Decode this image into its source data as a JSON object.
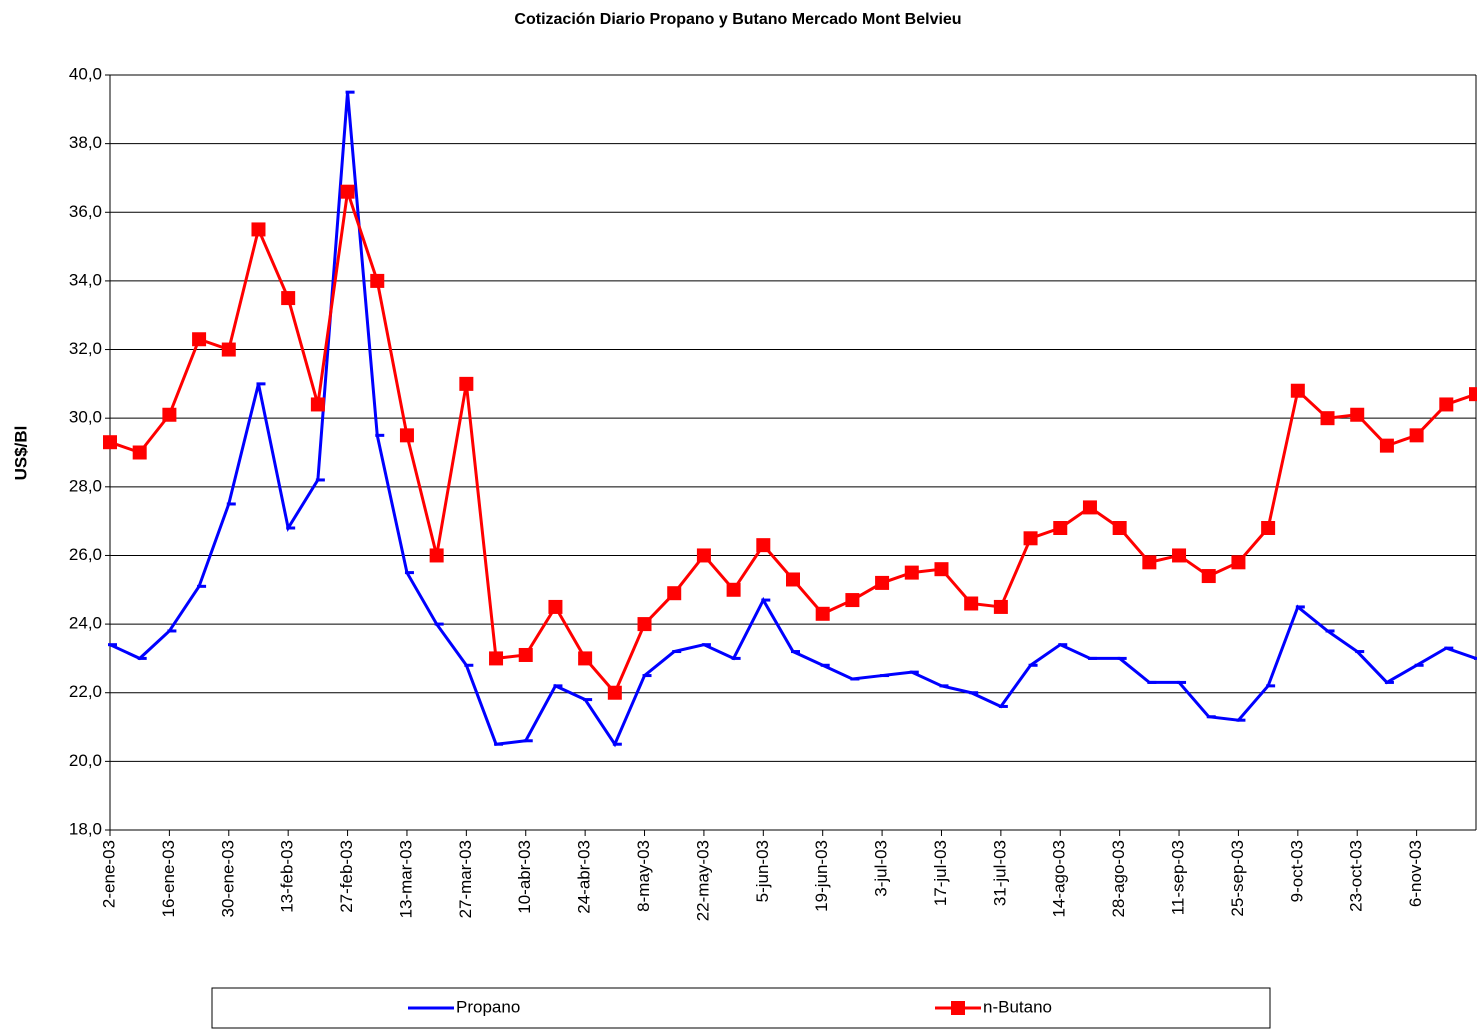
{
  "chart_data": {
    "type": "line",
    "title": "Cotización Diario Propano y Butano Mercado Mont Belvieu",
    "y_label": "US$/Bl",
    "categories": [
      "2-ene-03",
      null,
      "16-ene-03",
      null,
      "30-ene-03",
      null,
      "13-feb-03",
      null,
      "27-feb-03",
      null,
      "13-mar-03",
      null,
      "27-mar-03",
      null,
      "10-abr-03",
      null,
      "24-abr-03",
      null,
      "8-may-03",
      null,
      "22-may-03",
      null,
      "5-jun-03",
      null,
      "19-jun-03",
      null,
      "3-jul-03",
      null,
      "17-jul-03",
      null,
      "31-jul-03",
      null,
      "14-ago-03",
      null,
      "28-ago-03",
      null,
      "11-sep-03",
      null,
      "25-sep-03",
      null,
      "9-oct-03",
      null,
      "23-oct-03",
      null,
      "6-nov-03",
      null,
      null
    ],
    "series": [
      {
        "name": "Propano",
        "color": "#0000ff",
        "marker": "dash",
        "values": [
          23.4,
          23.0,
          23.8,
          25.1,
          27.5,
          31.0,
          26.8,
          28.2,
          39.5,
          29.5,
          25.5,
          24.0,
          22.8,
          20.5,
          20.6,
          22.2,
          21.8,
          20.5,
          22.5,
          23.2,
          23.4,
          23.0,
          24.7,
          23.2,
          22.8,
          22.4,
          22.5,
          22.6,
          22.2,
          22.0,
          21.6,
          22.8,
          23.4,
          23.0,
          23.0,
          22.3,
          22.3,
          21.3,
          21.2,
          22.2,
          24.5,
          23.8,
          23.2,
          22.3,
          22.8,
          23.3,
          23.0
        ]
      },
      {
        "name": "n-Butano",
        "color": "#ff0000",
        "marker": "square",
        "values": [
          29.3,
          29.0,
          30.1,
          32.3,
          32.0,
          35.5,
          33.5,
          30.4,
          36.6,
          34.0,
          29.5,
          26.0,
          31.0,
          23.0,
          23.1,
          24.5,
          23.0,
          22.0,
          24.0,
          24.9,
          26.0,
          25.0,
          26.3,
          25.3,
          24.3,
          24.7,
          25.2,
          25.5,
          25.6,
          24.6,
          24.5,
          26.5,
          26.8,
          27.4,
          26.8,
          25.8,
          26.0,
          25.4,
          25.8,
          26.8,
          30.8,
          30.0,
          30.1,
          29.2,
          29.5,
          30.4,
          30.7
        ]
      }
    ],
    "ylim": [
      18,
      40
    ],
    "yticks": [
      {
        "value": 18,
        "label": "18,0"
      },
      {
        "value": 20,
        "label": "20,0"
      },
      {
        "value": 22,
        "label": "22,0"
      },
      {
        "value": 24,
        "label": "24,0"
      },
      {
        "value": 26,
        "label": "26,0"
      },
      {
        "value": 28,
        "label": "28,0"
      },
      {
        "value": 30,
        "label": "30,0"
      },
      {
        "value": 32,
        "label": "32,0"
      },
      {
        "value": 34,
        "label": "34,0"
      },
      {
        "value": 36,
        "label": "36,0"
      },
      {
        "value": 38,
        "label": "38,0"
      },
      {
        "value": 40,
        "label": "40,0"
      }
    ],
    "grid": true,
    "legend": "bottom"
  }
}
